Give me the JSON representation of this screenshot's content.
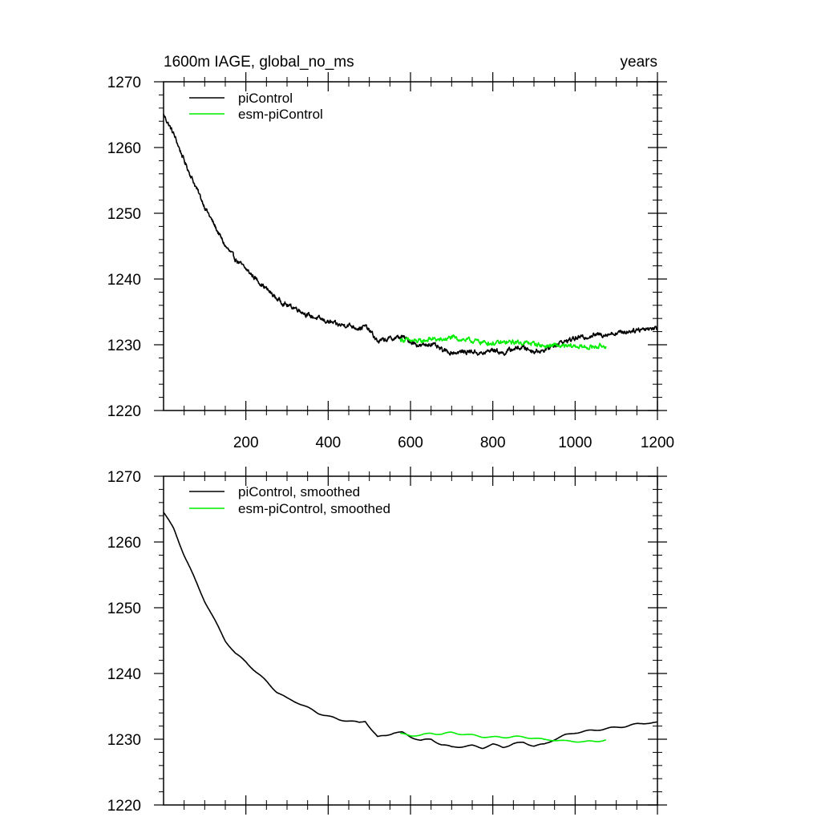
{
  "header": {
    "title_left": "1600m IAGE, global_no_ms",
    "title_right": "years"
  },
  "colors": {
    "series1": "#000000",
    "series2": "#00ee00",
    "frame": "#000000",
    "background": "#ffffff"
  },
  "chart_data": [
    {
      "type": "line",
      "title": "1600m IAGE, global_no_ms",
      "subtitle": "years",
      "xlabel": "",
      "ylabel": "",
      "xlim": [
        0,
        1200
      ],
      "ylim": [
        1220,
        1270
      ],
      "x_ticks": [
        200,
        400,
        600,
        800,
        1000,
        1200
      ],
      "x_tick_labels": [
        "200",
        "400",
        "600",
        "800",
        "1000",
        "1200"
      ],
      "y_ticks": [
        1220,
        1230,
        1240,
        1250,
        1260,
        1270
      ],
      "y_tick_labels": [
        "1220",
        "1230",
        "1240",
        "1250",
        "1260",
        "1270"
      ],
      "grid": false,
      "legend_position": "top-left",
      "series": [
        {
          "name": "piControl",
          "color": "#000000",
          "x": [
            0,
            25,
            50,
            75,
            100,
            125,
            150,
            175,
            200,
            225,
            250,
            275,
            300,
            325,
            350,
            375,
            400,
            425,
            450,
            475,
            490,
            505,
            520,
            540,
            560,
            580,
            600,
            625,
            650,
            675,
            700,
            725,
            750,
            775,
            800,
            825,
            850,
            875,
            900,
            925,
            950,
            975,
            1000,
            1025,
            1050,
            1075,
            1100,
            1125,
            1150,
            1175,
            1200
          ],
          "y": [
            1265.0,
            1262.0,
            1258.0,
            1254.5,
            1251.0,
            1248.0,
            1245.0,
            1243.0,
            1241.5,
            1240.0,
            1238.5,
            1237.0,
            1236.0,
            1235.5,
            1234.5,
            1234.0,
            1233.5,
            1233.0,
            1233.0,
            1232.5,
            1232.8,
            1231.8,
            1230.5,
            1230.8,
            1231.0,
            1231.2,
            1230.5,
            1229.8,
            1230.2,
            1229.2,
            1228.8,
            1228.9,
            1229.0,
            1228.6,
            1229.3,
            1228.7,
            1229.4,
            1229.6,
            1229.0,
            1229.2,
            1230.0,
            1230.5,
            1231.0,
            1231.2,
            1231.5,
            1231.6,
            1231.8,
            1232.0,
            1232.3,
            1232.5,
            1232.5
          ]
        },
        {
          "name": "esm-piControl",
          "color": "#00ee00",
          "x": [
            575,
            600,
            625,
            650,
            675,
            700,
            725,
            750,
            775,
            800,
            825,
            850,
            875,
            900,
            925,
            950,
            975,
            1000,
            1025,
            1050,
            1075
          ],
          "y": [
            1230.8,
            1230.6,
            1230.5,
            1230.9,
            1230.7,
            1231.1,
            1230.8,
            1230.6,
            1230.4,
            1230.2,
            1230.3,
            1230.4,
            1230.3,
            1230.2,
            1229.8,
            1229.9,
            1229.7,
            1229.8,
            1229.6,
            1229.7,
            1229.9
          ]
        }
      ]
    },
    {
      "type": "line",
      "title": "",
      "xlabel": "",
      "ylabel": "",
      "xlim": [
        0,
        1200
      ],
      "ylim": [
        1220,
        1270
      ],
      "x_ticks": [
        200,
        400,
        600,
        800,
        1000,
        1200
      ],
      "y_ticks": [
        1220,
        1230,
        1240,
        1250,
        1260,
        1270
      ],
      "y_tick_labels": [
        "1220",
        "1230",
        "1240",
        "1250",
        "1260",
        "1270"
      ],
      "grid": false,
      "legend_position": "top-left",
      "series": [
        {
          "name": "piControl, smoothed",
          "color": "#000000",
          "x": [
            0,
            25,
            50,
            75,
            100,
            125,
            150,
            175,
            200,
            225,
            250,
            275,
            300,
            325,
            350,
            375,
            400,
            425,
            450,
            475,
            490,
            505,
            520,
            540,
            560,
            580,
            600,
            625,
            650,
            675,
            700,
            725,
            750,
            775,
            800,
            825,
            850,
            875,
            900,
            925,
            950,
            975,
            1000,
            1025,
            1050,
            1075,
            1100,
            1125,
            1150,
            1175,
            1200
          ],
          "y": [
            1264.5,
            1262.0,
            1258.0,
            1254.5,
            1251.0,
            1248.0,
            1245.0,
            1243.0,
            1241.8,
            1240.2,
            1238.8,
            1237.2,
            1236.2,
            1235.6,
            1234.8,
            1234.0,
            1233.5,
            1233.0,
            1232.8,
            1232.5,
            1232.8,
            1231.5,
            1230.3,
            1230.6,
            1231.0,
            1231.0,
            1230.4,
            1229.8,
            1230.0,
            1229.2,
            1228.8,
            1228.9,
            1229.0,
            1228.7,
            1229.2,
            1228.8,
            1229.3,
            1229.5,
            1229.0,
            1229.2,
            1230.0,
            1230.6,
            1231.0,
            1231.2,
            1231.4,
            1231.6,
            1231.8,
            1232.0,
            1232.3,
            1232.5,
            1232.5
          ]
        },
        {
          "name": "esm-piControl, smoothed",
          "color": "#00ee00",
          "x": [
            575,
            600,
            625,
            650,
            675,
            700,
            725,
            750,
            775,
            800,
            825,
            850,
            875,
            900,
            925,
            950,
            975,
            1000,
            1025,
            1050,
            1075
          ],
          "y": [
            1230.8,
            1230.6,
            1230.6,
            1230.9,
            1230.8,
            1231.0,
            1230.8,
            1230.6,
            1230.4,
            1230.3,
            1230.3,
            1230.4,
            1230.3,
            1230.2,
            1229.9,
            1229.9,
            1229.7,
            1229.7,
            1229.6,
            1229.7,
            1229.9
          ]
        }
      ]
    }
  ]
}
